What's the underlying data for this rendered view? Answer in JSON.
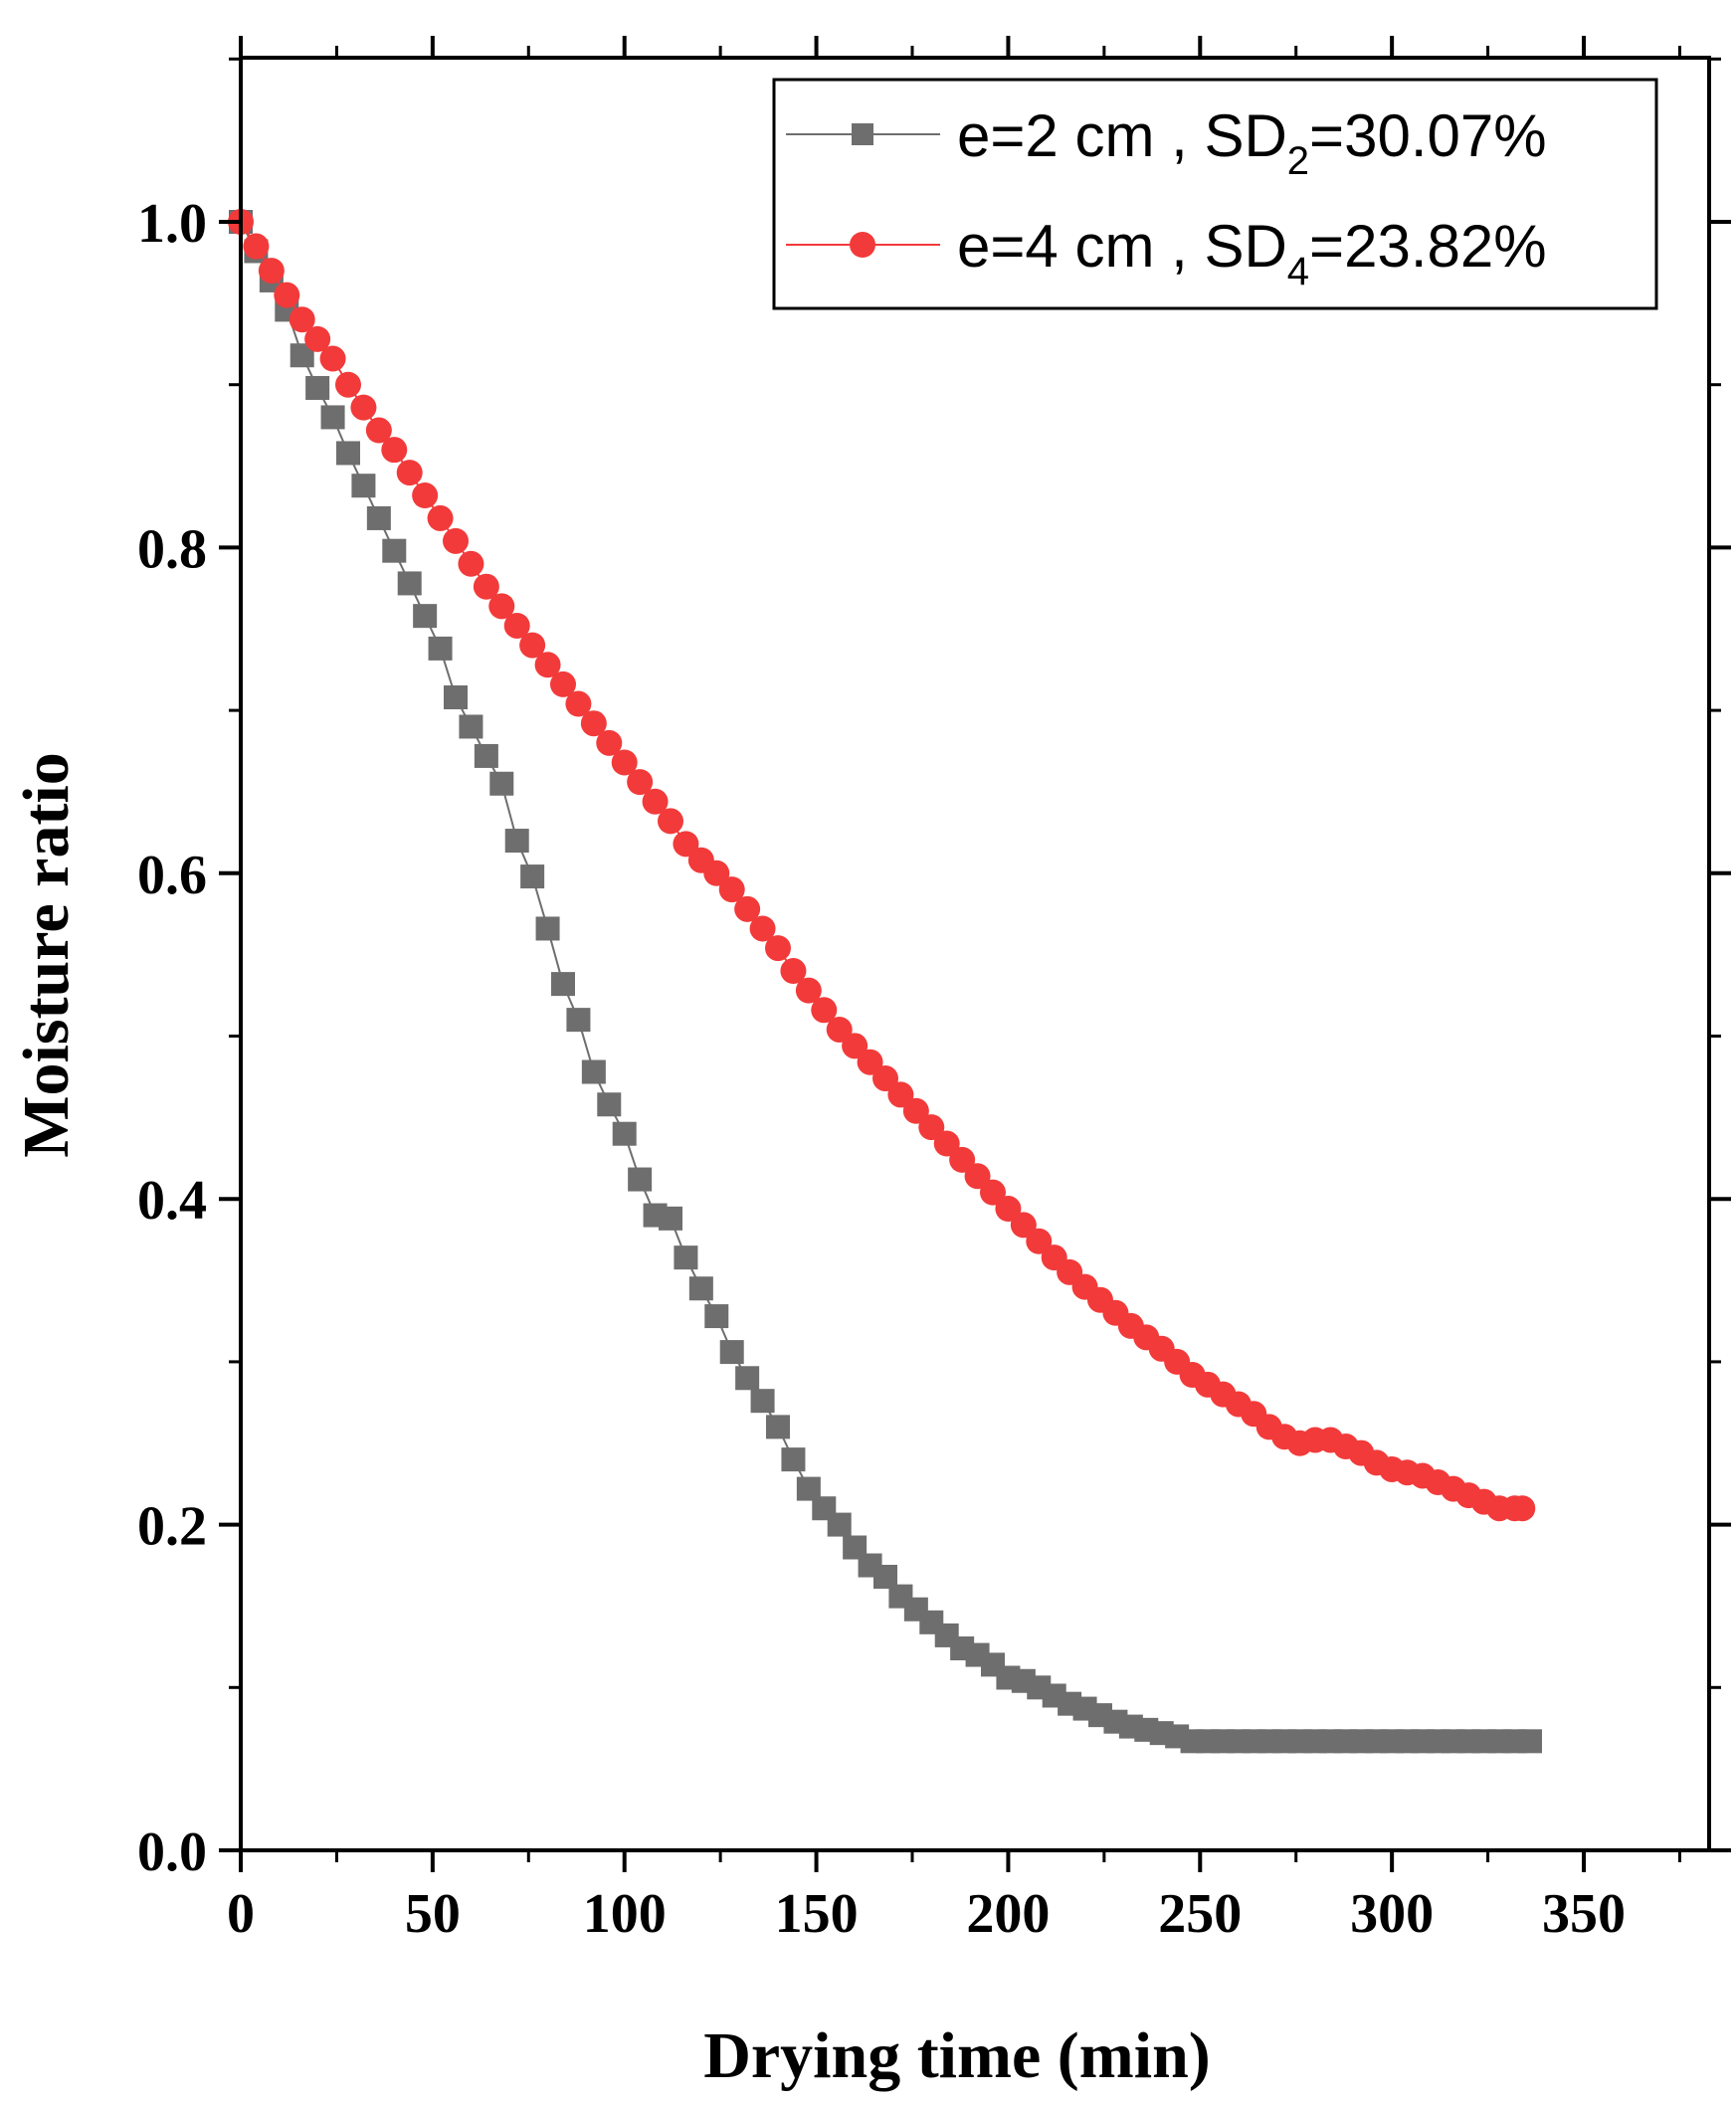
{
  "chart_data": {
    "type": "line",
    "title": "",
    "xlabel": "Drying time (min)",
    "ylabel": "Moisture ratio",
    "xlim": [
      0,
      375
    ],
    "ylim": [
      0,
      1.1
    ],
    "xticks": [
      0,
      50,
      100,
      150,
      200,
      250,
      300,
      350
    ],
    "xtick_labels": [
      "0",
      "50",
      "100",
      "150",
      "200",
      "250",
      "300",
      "350"
    ],
    "yticks": [
      0.0,
      0.2,
      0.4,
      0.6,
      0.8,
      1.0
    ],
    "ytick_labels": [
      "0.0",
      "0.2",
      "0.4",
      "0.6",
      "0.8",
      "1.0"
    ],
    "grid": false,
    "legend_position": "top-right",
    "series": [
      {
        "name": "e=2 cm , SD2=30.07%",
        "legend_main": "e=2 cm , SD",
        "legend_sub": "2",
        "legend_tail": "=30.07%",
        "color": "#6e6e6e",
        "marker": "square",
        "x": [
          0,
          4,
          8,
          12,
          16,
          20,
          24,
          28,
          32,
          36,
          40,
          44,
          48,
          52,
          56,
          60,
          64,
          68,
          72,
          76,
          80,
          84,
          88,
          92,
          96,
          100,
          104,
          108,
          112,
          116,
          120,
          124,
          128,
          132,
          136,
          140,
          144,
          148,
          152,
          156,
          160,
          164,
          168,
          172,
          176,
          180,
          184,
          188,
          192,
          196,
          200,
          204,
          208,
          212,
          216,
          220,
          224,
          228,
          232,
          236,
          240,
          244,
          248,
          252,
          256,
          260,
          264,
          268,
          272,
          276,
          280,
          284,
          288,
          292,
          296,
          300,
          304,
          308,
          312,
          316,
          320,
          324,
          328,
          332,
          336
        ],
        "values": [
          1.0,
          0.982,
          0.964,
          0.946,
          0.918,
          0.898,
          0.88,
          0.858,
          0.838,
          0.818,
          0.798,
          0.778,
          0.758,
          0.738,
          0.708,
          0.69,
          0.672,
          0.655,
          0.62,
          0.598,
          0.566,
          0.532,
          0.51,
          0.478,
          0.458,
          0.44,
          0.412,
          0.39,
          0.388,
          0.364,
          0.345,
          0.328,
          0.306,
          0.29,
          0.276,
          0.26,
          0.24,
          0.222,
          0.21,
          0.2,
          0.186,
          0.175,
          0.168,
          0.156,
          0.148,
          0.14,
          0.132,
          0.124,
          0.12,
          0.114,
          0.106,
          0.104,
          0.1,
          0.095,
          0.09,
          0.087,
          0.083,
          0.079,
          0.076,
          0.074,
          0.072,
          0.07,
          0.067,
          0.067,
          0.067,
          0.067,
          0.067,
          0.067,
          0.067,
          0.067,
          0.067,
          0.067,
          0.067,
          0.067,
          0.067,
          0.067,
          0.067,
          0.067,
          0.067,
          0.067,
          0.067,
          0.067,
          0.067,
          0.067,
          0.067
        ]
      },
      {
        "name": "e=4 cm , SD4=23.82%",
        "legend_main": "e=4 cm , SD",
        "legend_sub": "4",
        "legend_tail": "=23.82%",
        "color": "#f23a3a",
        "marker": "circle",
        "x": [
          0,
          4,
          8,
          12,
          16,
          20,
          24,
          28,
          32,
          36,
          40,
          44,
          48,
          52,
          56,
          60,
          64,
          68,
          72,
          76,
          80,
          84,
          88,
          92,
          96,
          100,
          104,
          108,
          112,
          116,
          120,
          124,
          128,
          132,
          136,
          140,
          144,
          148,
          152,
          156,
          160,
          164,
          168,
          172,
          176,
          180,
          184,
          188,
          192,
          196,
          200,
          204,
          208,
          212,
          216,
          220,
          224,
          228,
          232,
          236,
          240,
          244,
          248,
          252,
          256,
          260,
          264,
          268,
          272,
          276,
          280,
          284,
          288,
          292,
          296,
          300,
          304,
          308,
          312,
          316,
          320,
          324,
          328,
          332,
          334
        ],
        "values": [
          1.0,
          0.985,
          0.97,
          0.955,
          0.94,
          0.928,
          0.916,
          0.9,
          0.886,
          0.872,
          0.86,
          0.846,
          0.832,
          0.818,
          0.804,
          0.79,
          0.776,
          0.764,
          0.752,
          0.74,
          0.728,
          0.716,
          0.704,
          0.692,
          0.68,
          0.668,
          0.656,
          0.644,
          0.632,
          0.618,
          0.608,
          0.6,
          0.59,
          0.578,
          0.566,
          0.554,
          0.54,
          0.528,
          0.516,
          0.504,
          0.494,
          0.484,
          0.474,
          0.464,
          0.454,
          0.444,
          0.434,
          0.424,
          0.414,
          0.404,
          0.394,
          0.384,
          0.374,
          0.364,
          0.355,
          0.346,
          0.338,
          0.33,
          0.322,
          0.315,
          0.308,
          0.3,
          0.292,
          0.286,
          0.28,
          0.274,
          0.268,
          0.26,
          0.254,
          0.25,
          0.252,
          0.252,
          0.248,
          0.244,
          0.238,
          0.234,
          0.232,
          0.23,
          0.226,
          0.222,
          0.218,
          0.214,
          0.21,
          0.21,
          0.21
        ]
      }
    ]
  }
}
